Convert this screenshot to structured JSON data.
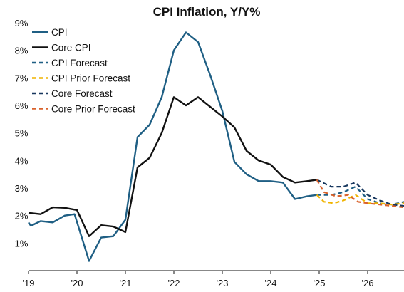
{
  "chart_data": {
    "type": "line",
    "title": "CPI Inflation, Y/Y%",
    "xlabel": "",
    "ylabel": "",
    "x_ticks": [
      "'19",
      "'20",
      "'21",
      "'22",
      "'23",
      "'24",
      "'25",
      "'26"
    ],
    "y_ticks": [
      "1%",
      "2%",
      "3%",
      "4%",
      "5%",
      "6%",
      "7%",
      "8%",
      "9%"
    ],
    "xlim": [
      2019.0,
      2026.75
    ],
    "ylim": [
      0,
      9
    ],
    "grid": false,
    "legend_position": "top-left",
    "series": [
      {
        "name": "CPI",
        "color": "#1f5f84",
        "dashed": false,
        "points": [
          [
            2019.0,
            1.75
          ],
          [
            2019.05,
            1.63
          ],
          [
            2019.25,
            1.8
          ],
          [
            2019.5,
            1.75
          ],
          [
            2019.75,
            2.0
          ],
          [
            2019.95,
            2.05
          ],
          [
            2020.25,
            0.35
          ],
          [
            2020.5,
            1.2
          ],
          [
            2020.75,
            1.25
          ],
          [
            2021.0,
            1.85
          ],
          [
            2021.25,
            4.85
          ],
          [
            2021.5,
            5.3
          ],
          [
            2021.75,
            6.3
          ],
          [
            2022.0,
            8.0
          ],
          [
            2022.25,
            8.65
          ],
          [
            2022.5,
            8.3
          ],
          [
            2022.75,
            7.1
          ],
          [
            2023.0,
            5.8
          ],
          [
            2023.25,
            3.95
          ],
          [
            2023.5,
            3.5
          ],
          [
            2023.75,
            3.25
          ],
          [
            2024.0,
            3.25
          ],
          [
            2024.25,
            3.2
          ],
          [
            2024.5,
            2.6
          ],
          [
            2024.75,
            2.7
          ],
          [
            2024.95,
            2.75
          ]
        ]
      },
      {
        "name": "Core CPI",
        "color": "#111111",
        "dashed": false,
        "points": [
          [
            2019.0,
            2.1
          ],
          [
            2019.25,
            2.05
          ],
          [
            2019.5,
            2.3
          ],
          [
            2019.75,
            2.28
          ],
          [
            2020.0,
            2.2
          ],
          [
            2020.25,
            1.25
          ],
          [
            2020.5,
            1.65
          ],
          [
            2020.75,
            1.6
          ],
          [
            2021.0,
            1.4
          ],
          [
            2021.25,
            3.75
          ],
          [
            2021.5,
            4.1
          ],
          [
            2021.75,
            5.0
          ],
          [
            2022.0,
            6.3
          ],
          [
            2022.25,
            6.0
          ],
          [
            2022.5,
            6.3
          ],
          [
            2022.75,
            5.95
          ],
          [
            2023.0,
            5.6
          ],
          [
            2023.25,
            5.2
          ],
          [
            2023.5,
            4.35
          ],
          [
            2023.75,
            4.0
          ],
          [
            2024.0,
            3.85
          ],
          [
            2024.25,
            3.4
          ],
          [
            2024.5,
            3.2
          ],
          [
            2024.75,
            3.25
          ],
          [
            2024.95,
            3.3
          ]
        ]
      },
      {
        "name": "CPI Forecast",
        "color": "#1f5f84",
        "dashed": true,
        "points": [
          [
            2024.95,
            2.75
          ],
          [
            2025.25,
            2.75
          ],
          [
            2025.5,
            2.85
          ],
          [
            2025.75,
            3.05
          ],
          [
            2026.0,
            2.6
          ],
          [
            2026.25,
            2.45
          ],
          [
            2026.5,
            2.4
          ],
          [
            2026.75,
            2.5
          ]
        ]
      },
      {
        "name": "CPI Prior Forecast",
        "color": "#f0b400",
        "dashed": true,
        "points": [
          [
            2024.95,
            2.75
          ],
          [
            2025.1,
            2.5
          ],
          [
            2025.3,
            2.45
          ],
          [
            2025.5,
            2.55
          ],
          [
            2025.75,
            2.75
          ],
          [
            2026.0,
            2.45
          ],
          [
            2026.25,
            2.45
          ],
          [
            2026.5,
            2.4
          ],
          [
            2026.75,
            2.45
          ]
        ]
      },
      {
        "name": "Core Forecast",
        "color": "#17375e",
        "dashed": true,
        "points": [
          [
            2024.95,
            3.3
          ],
          [
            2025.25,
            3.05
          ],
          [
            2025.5,
            3.05
          ],
          [
            2025.75,
            3.2
          ],
          [
            2026.0,
            2.75
          ],
          [
            2026.25,
            2.55
          ],
          [
            2026.5,
            2.4
          ],
          [
            2026.75,
            2.35
          ]
        ]
      },
      {
        "name": "Core Prior Forecast",
        "color": "#d9622b",
        "dashed": true,
        "points": [
          [
            2024.95,
            3.3
          ],
          [
            2025.1,
            2.85
          ],
          [
            2025.35,
            2.7
          ],
          [
            2025.6,
            2.75
          ],
          [
            2025.8,
            2.5
          ],
          [
            2026.0,
            2.45
          ],
          [
            2026.25,
            2.4
          ],
          [
            2026.5,
            2.35
          ],
          [
            2026.75,
            2.3
          ]
        ]
      }
    ]
  }
}
